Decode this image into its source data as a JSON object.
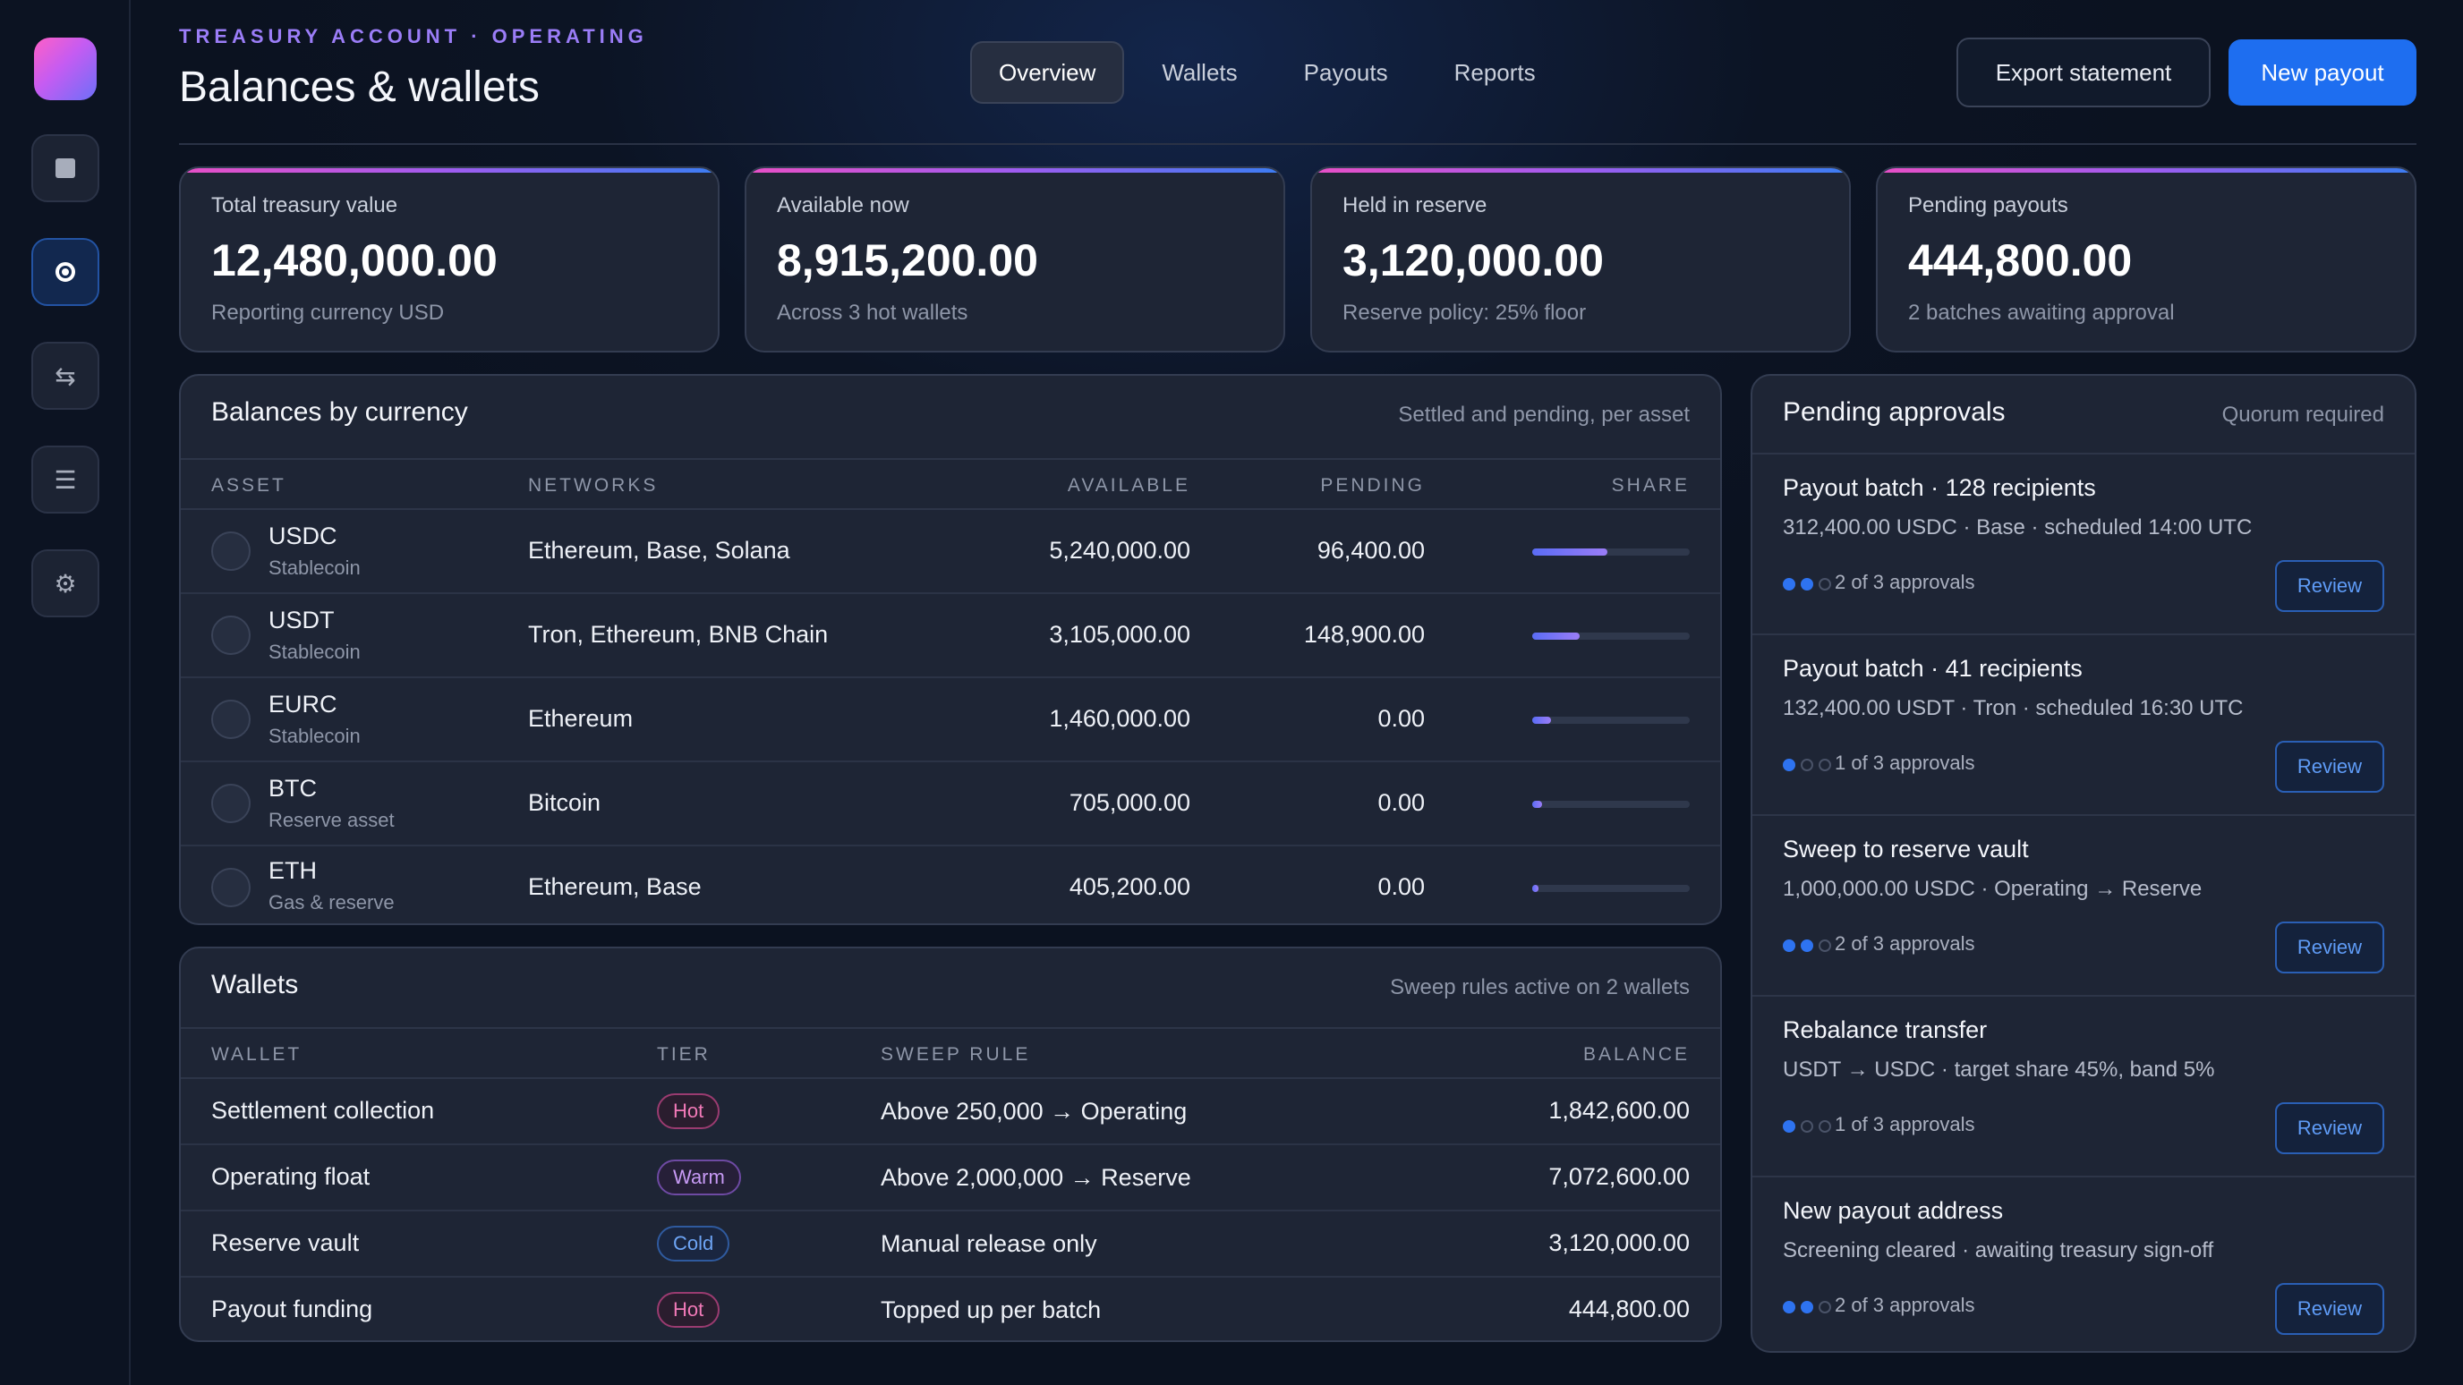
{
  "header": {
    "eyebrow": "TREASURY ACCOUNT · OPERATING",
    "title": "Balances & wallets",
    "tabs": [
      {
        "label": "Overview",
        "active": true
      },
      {
        "label": "Wallets",
        "active": false
      },
      {
        "label": "Payouts",
        "active": false
      },
      {
        "label": "Reports",
        "active": false
      }
    ],
    "export_label": "Export statement",
    "new_payout_label": "New payout"
  },
  "sidebar": {
    "items": [
      {
        "icon": "square-icon"
      },
      {
        "icon": "radio-dot-icon",
        "active": true
      },
      {
        "icon": "transfer-arrows-icon",
        "glyph": "⇆"
      },
      {
        "icon": "list-icon",
        "glyph": "☰"
      },
      {
        "icon": "gear-icon",
        "glyph": "⚙"
      }
    ]
  },
  "stats": [
    {
      "label": "Total treasury value",
      "value": "12,480,000.00",
      "sub": "Reporting currency USD"
    },
    {
      "label": "Available now",
      "value": "8,915,200.00",
      "sub": "Across 3 hot wallets"
    },
    {
      "label": "Held in reserve",
      "value": "3,120,000.00",
      "sub": "Reserve policy: 25% floor"
    },
    {
      "label": "Pending payouts",
      "value": "444,800.00",
      "sub": "2 batches awaiting approval"
    }
  ],
  "balances": {
    "title": "Balances by currency",
    "subtitle": "Settled and pending, per asset",
    "columns": {
      "asset": "ASSET",
      "networks": "NETWORKS",
      "available": "AVAILABLE",
      "pending": "PENDING",
      "share": "SHARE"
    },
    "rows": [
      {
        "asset": "USDC",
        "type": "Stablecoin",
        "networks": "Ethereum, Base, Solana",
        "available": "5,240,000.00",
        "pending": "96,400.00",
        "share": 0.48
      },
      {
        "asset": "USDT",
        "type": "Stablecoin",
        "networks": "Tron, Ethereum, BNB Chain",
        "available": "3,105,000.00",
        "pending": "148,900.00",
        "share": 0.3
      },
      {
        "asset": "EURC",
        "type": "Stablecoin",
        "networks": "Ethereum",
        "available": "1,460,000.00",
        "pending": "0.00",
        "share": 0.12
      },
      {
        "asset": "BTC",
        "type": "Reserve asset",
        "networks": "Bitcoin",
        "available": "705,000.00",
        "pending": "0.00",
        "share": 0.06
      },
      {
        "asset": "ETH",
        "type": "Gas & reserve",
        "networks": "Ethereum, Base",
        "available": "405,200.00",
        "pending": "0.00",
        "share": 0.04
      }
    ]
  },
  "wallets": {
    "title": "Wallets",
    "subtitle": "Sweep rules active on 2 wallets",
    "columns": {
      "wallet": "WALLET",
      "tier": "TIER",
      "rule": "SWEEP RULE",
      "balance": "BALANCE"
    },
    "rows": [
      {
        "name": "Settlement collection",
        "tier": "Hot",
        "tier_class": "hot",
        "rule": "Above 250,000 → Operating",
        "balance": "1,842,600.00"
      },
      {
        "name": "Operating float",
        "tier": "Warm",
        "tier_class": "warm",
        "rule": "Above 2,000,000 → Reserve",
        "balance": "7,072,600.00"
      },
      {
        "name": "Reserve vault",
        "tier": "Cold",
        "tier_class": "cold",
        "rule": "Manual release only",
        "balance": "3,120,000.00"
      },
      {
        "name": "Payout funding",
        "tier": "Hot",
        "tier_class": "hot",
        "rule": "Topped up per batch",
        "balance": "444,800.00"
      }
    ]
  },
  "approvals": {
    "title": "Pending approvals",
    "subtitle": "Quorum required",
    "review_label": "Review",
    "items": [
      {
        "title": "Payout batch · 128 recipients",
        "meta": "312,400.00 USDC · Base · scheduled 14:00 UTC",
        "approved": 2,
        "required": 3,
        "count": "2 of 3 approvals"
      },
      {
        "title": "Payout batch · 41 recipients",
        "meta": "132,400.00 USDT · Tron · scheduled 16:30 UTC",
        "approved": 1,
        "required": 3,
        "count": "1 of 3 approvals"
      },
      {
        "title": "Sweep to reserve vault",
        "meta": "1,000,000.00 USDC · Operating → Reserve",
        "approved": 2,
        "required": 3,
        "count": "2 of 3 approvals"
      },
      {
        "title": "Rebalance transfer",
        "meta": "USDT → USDC · target share 45%, band 5%",
        "approved": 1,
        "required": 3,
        "count": "1 of 3 approvals"
      },
      {
        "title": "New payout address",
        "meta": "Screening cleared · awaiting treasury sign-off",
        "approved": 2,
        "required": 3,
        "count": "2 of 3 approvals"
      }
    ]
  }
}
